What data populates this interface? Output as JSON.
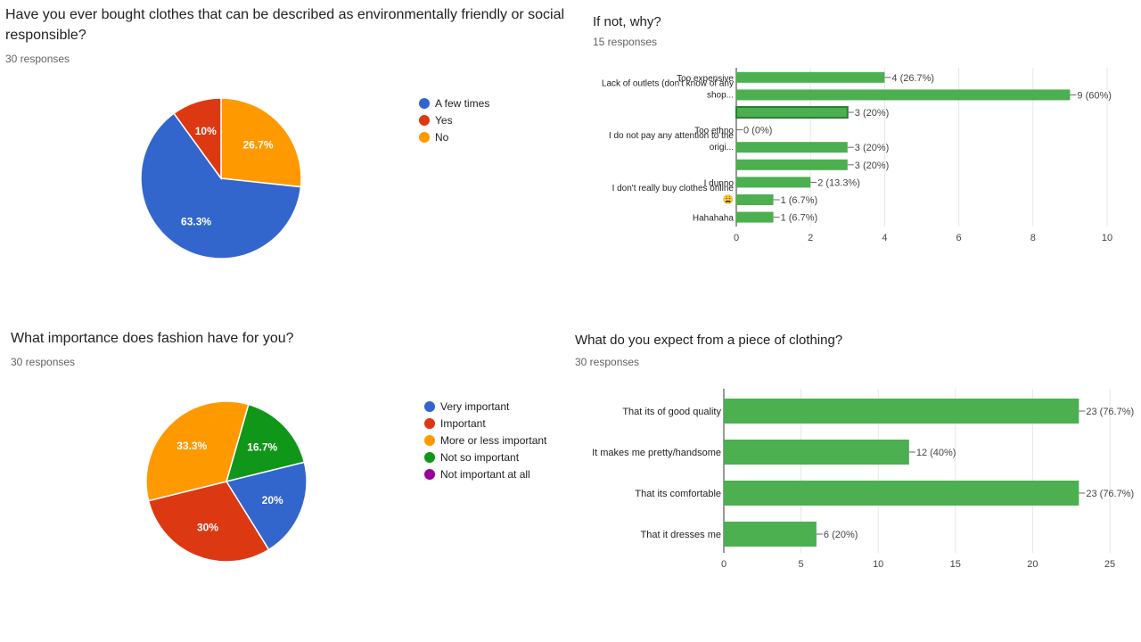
{
  "charts": {
    "q1": {
      "title_line1": "Have you ever bought clothes that can be described as environmentally friendly or social",
      "title_line2": "responsible?",
      "responses": "30 responses",
      "legend": [
        {
          "label": "A few times",
          "color": "#3366cc"
        },
        {
          "label": "Yes",
          "color": "#dc3912"
        },
        {
          "label": "No",
          "color": "#ff9900"
        }
      ]
    },
    "q2": {
      "title": "If not, why?",
      "responses": "15 responses"
    },
    "q3": {
      "title": "What importance does fashion have for you?",
      "responses": "30 responses",
      "legend": [
        {
          "label": "Very important",
          "color": "#3366cc"
        },
        {
          "label": "Important",
          "color": "#dc3912"
        },
        {
          "label": "More or less important",
          "color": "#ff9900"
        },
        {
          "label": "Not so important",
          "color": "#109618"
        },
        {
          "label": "Not important at all",
          "color": "#990099"
        }
      ]
    },
    "q4": {
      "title": "What do you expect from a piece of clothing?",
      "responses": "30 responses"
    }
  },
  "chart_data": [
    {
      "type": "pie",
      "title": "Have you ever bought clothes that can be described as environmentally friendly or social responsible?",
      "slices": [
        {
          "label": "A few times",
          "percent": 63.3,
          "display": "63.3%",
          "color": "#3366cc"
        },
        {
          "label": "Yes",
          "percent": 10,
          "display": "10%",
          "color": "#dc3912"
        },
        {
          "label": "No",
          "percent": 26.7,
          "display": "26.7%",
          "color": "#ff9900"
        }
      ]
    },
    {
      "type": "bar",
      "orientation": "horizontal",
      "title": "If not, why?",
      "bar_color": "#4caf50",
      "xlim": [
        0,
        10
      ],
      "xticks": [
        0,
        2,
        4,
        6,
        8,
        10
      ],
      "categories": [
        {
          "label_lines": [
            "Too expensive"
          ],
          "value": 4,
          "label": "4 (26.7%)"
        },
        {
          "label_lines": [
            "Lack of outlets (don't know of any",
            "shop..."
          ],
          "value": 9,
          "label": "9 (60%)"
        },
        {
          "label_lines": [
            ""
          ],
          "value": 3,
          "label": "3 (20%)",
          "outlined": true
        },
        {
          "label_lines": [
            "Too ethno"
          ],
          "value": 0,
          "label": "0 (0%)"
        },
        {
          "label_lines": [
            "I do not pay any attention to the",
            "origi..."
          ],
          "value": 3,
          "label": "3 (20%)"
        },
        {
          "label_lines": [
            ""
          ],
          "value": 3,
          "label": "3 (20%)"
        },
        {
          "label_lines": [
            "I dunno"
          ],
          "value": 2,
          "label": "2 (13.3%)"
        },
        {
          "label_lines": [
            "I don't really buy clothes online",
            "😩"
          ],
          "value": 1,
          "label": "1 (6.7%)"
        },
        {
          "label_lines": [
            "Hahahaha"
          ],
          "value": 1,
          "label": "1 (6.7%)"
        }
      ]
    },
    {
      "type": "pie",
      "title": "What importance does fashion have for you?",
      "slices": [
        {
          "label": "Very important",
          "percent": 20,
          "display": "20%",
          "color": "#3366cc"
        },
        {
          "label": "Important",
          "percent": 30,
          "display": "30%",
          "color": "#dc3912"
        },
        {
          "label": "More or less important",
          "percent": 33.3,
          "display": "33.3%",
          "color": "#ff9900"
        },
        {
          "label": "Not so important",
          "percent": 16.7,
          "display": "16.7%",
          "color": "#109618"
        },
        {
          "label": "Not important at all",
          "percent": 0,
          "display": "",
          "color": "#990099"
        }
      ]
    },
    {
      "type": "bar",
      "orientation": "horizontal",
      "title": "What do you expect from a piece of clothing?",
      "bar_color": "#4caf50",
      "xlim": [
        0,
        25
      ],
      "xticks": [
        0,
        5,
        10,
        15,
        20,
        25
      ],
      "categories": [
        {
          "label_lines": [
            "That its of good quality"
          ],
          "value": 23,
          "label": "23 (76.7%)"
        },
        {
          "label_lines": [
            "It makes me pretty/handsome"
          ],
          "value": 12,
          "label": "12 (40%)"
        },
        {
          "label_lines": [
            "That its comfortable"
          ],
          "value": 23,
          "label": "23 (76.7%)"
        },
        {
          "label_lines": [
            "That it dresses me"
          ],
          "value": 6,
          "label": "6 (20%)"
        }
      ]
    }
  ]
}
